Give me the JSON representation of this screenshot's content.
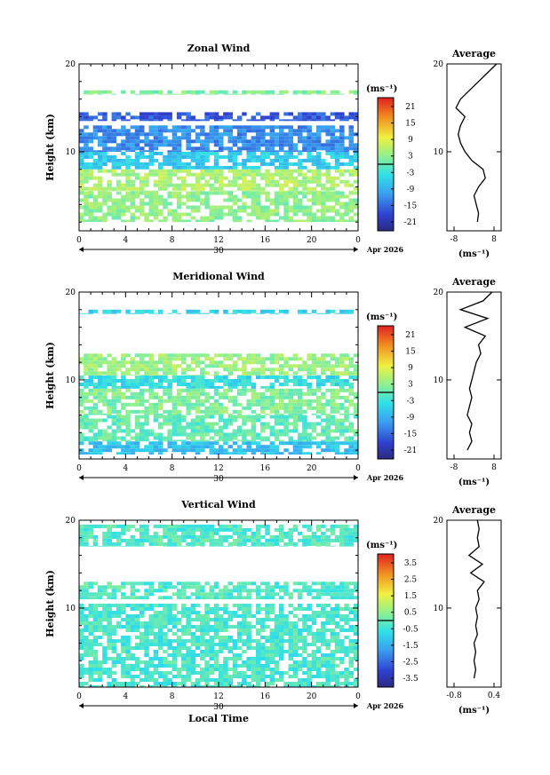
{
  "figure": {
    "date_label": "Apr 2026",
    "day_label": "30",
    "local_time_label": "Local Time",
    "average_title": "Average",
    "height_label": "Height (km)",
    "unit_label": "(ms⁻¹)"
  },
  "chart_data": [
    {
      "type": "heatmap",
      "title": "Zonal Wind",
      "ylabel": "Height (km)",
      "xlabel": "",
      "x_ticks": [
        "0",
        "4",
        "8",
        "12",
        "16",
        "20",
        "0"
      ],
      "y_ticks": [
        "10",
        "20"
      ],
      "xlim": [
        0,
        24
      ],
      "ylim": [
        1,
        20
      ],
      "colorbar": {
        "label": "(ms⁻¹)",
        "ticks": [
          "21",
          "15",
          "9",
          "3",
          "-3",
          "-9",
          "-15",
          "-21"
        ],
        "range": [
          -24,
          24
        ]
      },
      "height_bands": [
        {
          "from_km": 2,
          "to_km": 5.5,
          "value": 3
        },
        {
          "from_km": 5.5,
          "to_km": 8,
          "value": 5
        },
        {
          "from_km": 8,
          "to_km": 10,
          "value": -6
        },
        {
          "from_km": 10,
          "to_km": 13,
          "value": -12
        },
        {
          "from_km": 13.5,
          "to_km": 14.5,
          "value": -16
        },
        {
          "from_km": 16.5,
          "to_km": 17,
          "value": 2
        }
      ],
      "profile": {
        "title": "Average",
        "xlabel": "(ms⁻¹)",
        "x_ticks": [
          "-8",
          "8"
        ],
        "y_ticks": [
          "10",
          "20"
        ],
        "xlim": [
          -12,
          12
        ],
        "points": [
          [
            1.5,
            2
          ],
          [
            2,
            3
          ],
          [
            1,
            4
          ],
          [
            0,
            5
          ],
          [
            2,
            6
          ],
          [
            5,
            7
          ],
          [
            4,
            8
          ],
          [
            -1,
            9
          ],
          [
            -4,
            10
          ],
          [
            -6,
            11
          ],
          [
            -7,
            12
          ],
          [
            -6,
            13
          ],
          [
            -4,
            14
          ],
          [
            -8,
            15
          ],
          [
            -6,
            16
          ],
          [
            -2,
            17
          ],
          [
            2,
            18
          ],
          [
            6,
            19
          ],
          [
            10,
            20
          ]
        ]
      }
    },
    {
      "type": "heatmap",
      "title": "Meridional Wind",
      "ylabel": "Height (km)",
      "xlabel": "",
      "x_ticks": [
        "0",
        "4",
        "8",
        "12",
        "16",
        "20",
        "0"
      ],
      "y_ticks": [
        "10",
        "20"
      ],
      "xlim": [
        0,
        24
      ],
      "ylim": [
        1,
        20
      ],
      "colorbar": {
        "label": "(ms⁻¹)",
        "ticks": [
          "21",
          "15",
          "9",
          "3",
          "-3",
          "-9",
          "-15",
          "-21"
        ],
        "range": [
          -24,
          24
        ]
      },
      "height_bands": [
        {
          "from_km": 1.5,
          "to_km": 3,
          "value": -7
        },
        {
          "from_km": 3,
          "to_km": 6,
          "value": 0
        },
        {
          "from_km": 6,
          "to_km": 9,
          "value": 2
        },
        {
          "from_km": 9,
          "to_km": 10.5,
          "value": -4
        },
        {
          "from_km": 10.5,
          "to_km": 13,
          "value": 4
        },
        {
          "from_km": 17.5,
          "to_km": 18,
          "value": -5
        }
      ],
      "profile": {
        "title": "Average",
        "xlabel": "(ms⁻¹)",
        "x_ticks": [
          "-8",
          "8"
        ],
        "y_ticks": [
          "10",
          "20"
        ],
        "xlim": [
          -12,
          12
        ],
        "points": [
          [
            -3,
            2
          ],
          [
            -1,
            3
          ],
          [
            -2,
            4
          ],
          [
            -1,
            5
          ],
          [
            -3,
            6
          ],
          [
            -2,
            7
          ],
          [
            -1,
            8
          ],
          [
            -2,
            9
          ],
          [
            -1,
            10
          ],
          [
            0,
            11
          ],
          [
            1,
            12
          ],
          [
            3,
            13
          ],
          [
            2,
            14
          ],
          [
            5,
            15
          ],
          [
            -4,
            16
          ],
          [
            6,
            17
          ],
          [
            -6,
            18
          ],
          [
            4,
            19
          ],
          [
            8,
            20
          ]
        ]
      }
    },
    {
      "type": "heatmap",
      "title": "Vertical Wind",
      "ylabel": "Height (km)",
      "xlabel": "Local Time",
      "x_ticks": [
        "0",
        "4",
        "8",
        "12",
        "16",
        "20",
        "0"
      ],
      "y_ticks": [
        "10",
        "20"
      ],
      "xlim": [
        0,
        24
      ],
      "ylim": [
        1,
        20
      ],
      "colorbar": {
        "label": "(ms⁻¹)",
        "ticks": [
          "3.5",
          "2.5",
          "1.5",
          "0.5",
          "-0.5",
          "-1.5",
          "-2.5",
          "-3.5"
        ],
        "range": [
          -4,
          4
        ]
      },
      "height_bands": [
        {
          "from_km": 1,
          "to_km": 10.5,
          "value": -0.3
        },
        {
          "from_km": 11,
          "to_km": 13,
          "value": -0.2
        },
        {
          "from_km": 17,
          "to_km": 19.5,
          "value": -0.2
        }
      ],
      "profile": {
        "title": "Average",
        "xlabel": "(ms⁻¹)",
        "x_ticks": [
          "-0.8",
          "0.4"
        ],
        "y_ticks": [
          "10",
          "20"
        ],
        "xlim": [
          -1,
          0.6
        ],
        "points": [
          [
            -0.2,
            2
          ],
          [
            -0.15,
            3
          ],
          [
            -0.2,
            4
          ],
          [
            -0.15,
            5
          ],
          [
            -0.2,
            6
          ],
          [
            -0.1,
            7
          ],
          [
            -0.15,
            8
          ],
          [
            -0.1,
            9
          ],
          [
            -0.15,
            10
          ],
          [
            -0.05,
            11
          ],
          [
            -0.1,
            12
          ],
          [
            0.1,
            13
          ],
          [
            -0.3,
            14
          ],
          [
            0.05,
            15
          ],
          [
            -0.35,
            16
          ],
          [
            -0.05,
            17
          ],
          [
            -0.1,
            18
          ],
          [
            -0.05,
            19
          ],
          [
            -0.1,
            20
          ]
        ]
      }
    }
  ]
}
